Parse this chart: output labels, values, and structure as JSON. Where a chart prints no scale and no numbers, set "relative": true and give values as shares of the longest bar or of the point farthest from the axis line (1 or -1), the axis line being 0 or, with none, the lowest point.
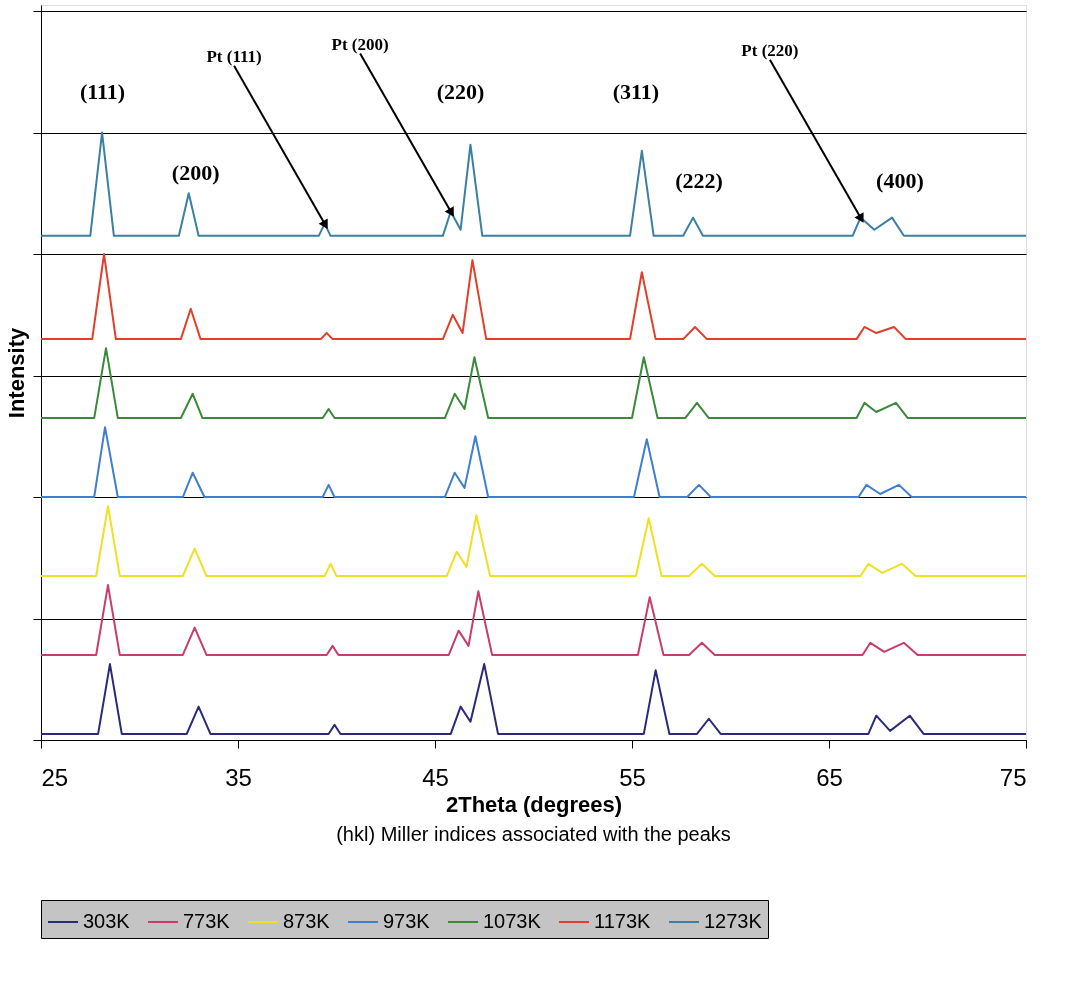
{
  "chart_data": {
    "type": "line",
    "relative": true,
    "xlabel": "2Theta (degrees)",
    "ylabel": "Intensity",
    "xlim": [
      25,
      75
    ],
    "xticks": [
      25,
      35,
      45,
      55,
      65,
      75
    ],
    "grid": "y",
    "legend": "bottom",
    "line_style": "solid",
    "marker": "none",
    "series": [
      {
        "name": "303K",
        "color": "#2b2a7a",
        "x": [
          25,
          27.9,
          28.5,
          29.1,
          32.4,
          33.0,
          33.6,
          39.6,
          39.9,
          40.2,
          45.8,
          46.3,
          46.8,
          47.5,
          48.2,
          55.6,
          56.2,
          56.9,
          58.3,
          58.9,
          59.5,
          67.0,
          67.4,
          68.1,
          69.1,
          69.8,
          75
        ],
        "values": [
          0.01,
          0.01,
          0.125,
          0.01,
          0.01,
          0.055,
          0.01,
          0.01,
          0.025,
          0.01,
          0.01,
          0.055,
          0.03,
          0.125,
          0.01,
          0.01,
          0.115,
          0.01,
          0.01,
          0.035,
          0.01,
          0.01,
          0.04,
          0.015,
          0.04,
          0.01,
          0.01
        ]
      },
      {
        "name": "773K",
        "color": "#c83c6e",
        "x": [
          25,
          27.8,
          28.4,
          29.0,
          32.2,
          32.8,
          33.4,
          39.5,
          39.8,
          40.1,
          45.7,
          46.2,
          46.7,
          47.2,
          47.9,
          55.3,
          55.9,
          56.6,
          57.9,
          58.55,
          59.2,
          66.7,
          67.1,
          67.8,
          68.8,
          69.5,
          75
        ],
        "values": [
          0.14,
          0.14,
          0.255,
          0.14,
          0.14,
          0.185,
          0.14,
          0.14,
          0.155,
          0.14,
          0.14,
          0.18,
          0.155,
          0.245,
          0.14,
          0.14,
          0.235,
          0.14,
          0.14,
          0.16,
          0.14,
          0.14,
          0.16,
          0.145,
          0.16,
          0.14,
          0.14
        ]
      },
      {
        "name": "873K",
        "color": "#f0e024",
        "x": [
          25,
          27.8,
          28.4,
          29.0,
          32.2,
          32.8,
          33.4,
          39.4,
          39.7,
          40.0,
          45.6,
          46.1,
          46.6,
          47.1,
          47.8,
          55.2,
          55.85,
          56.5,
          57.9,
          58.55,
          59.2,
          66.6,
          67.0,
          67.7,
          68.7,
          69.4,
          75
        ],
        "values": [
          0.27,
          0.27,
          0.385,
          0.27,
          0.27,
          0.315,
          0.27,
          0.27,
          0.29,
          0.27,
          0.27,
          0.31,
          0.285,
          0.37,
          0.27,
          0.27,
          0.365,
          0.27,
          0.27,
          0.29,
          0.27,
          0.27,
          0.29,
          0.275,
          0.29,
          0.27,
          0.27
        ]
      },
      {
        "name": "973K",
        "color": "#3f7fd0",
        "x": [
          25,
          27.7,
          28.25,
          28.9,
          32.2,
          32.7,
          33.3,
          39.3,
          39.6,
          39.9,
          45.5,
          46.0,
          46.5,
          47.05,
          47.7,
          55.1,
          55.75,
          56.4,
          57.8,
          58.4,
          59.0,
          66.5,
          66.9,
          67.6,
          68.55,
          69.2,
          75
        ],
        "values": [
          0.4,
          0.4,
          0.515,
          0.4,
          0.4,
          0.44,
          0.4,
          0.4,
          0.42,
          0.4,
          0.4,
          0.44,
          0.415,
          0.5,
          0.4,
          0.4,
          0.495,
          0.4,
          0.4,
          0.42,
          0.4,
          0.4,
          0.42,
          0.405,
          0.42,
          0.4,
          0.4
        ]
      },
      {
        "name": "1073K",
        "color": "#3a8a3a",
        "x": [
          25,
          27.7,
          28.3,
          28.9,
          32.1,
          32.7,
          33.2,
          39.3,
          39.6,
          39.9,
          45.5,
          46.0,
          46.5,
          47.0,
          47.7,
          55.0,
          55.6,
          56.3,
          57.7,
          58.3,
          58.9,
          66.4,
          66.8,
          67.4,
          68.4,
          69.0,
          75
        ],
        "values": [
          0.53,
          0.53,
          0.645,
          0.53,
          0.53,
          0.57,
          0.53,
          0.53,
          0.545,
          0.53,
          0.53,
          0.57,
          0.545,
          0.63,
          0.53,
          0.53,
          0.63,
          0.53,
          0.53,
          0.555,
          0.53,
          0.53,
          0.555,
          0.54,
          0.555,
          0.53,
          0.53
        ]
      },
      {
        "name": "1173K",
        "color": "#e0402a",
        "x": [
          25,
          27.6,
          28.2,
          28.8,
          32.1,
          32.6,
          33.1,
          39.2,
          39.5,
          39.8,
          45.4,
          45.9,
          46.4,
          46.9,
          47.6,
          54.9,
          55.5,
          56.2,
          57.6,
          58.2,
          58.8,
          66.4,
          66.8,
          67.4,
          68.3,
          68.9,
          75
        ],
        "values": [
          0.66,
          0.66,
          0.8,
          0.66,
          0.66,
          0.71,
          0.66,
          0.66,
          0.67,
          0.66,
          0.66,
          0.7,
          0.67,
          0.79,
          0.66,
          0.66,
          0.77,
          0.66,
          0.66,
          0.68,
          0.66,
          0.66,
          0.68,
          0.67,
          0.68,
          0.66,
          0.66
        ]
      },
      {
        "name": "1273K",
        "color": "#3a80a0",
        "x": [
          25,
          27.5,
          28.1,
          28.7,
          32.0,
          32.5,
          33.0,
          39.1,
          39.4,
          39.7,
          45.4,
          45.8,
          46.3,
          46.8,
          47.4,
          54.9,
          55.5,
          56.1,
          57.6,
          58.1,
          58.6,
          66.2,
          66.6,
          67.3,
          68.2,
          68.8,
          75
        ],
        "values": [
          0.83,
          0.83,
          1.0,
          0.83,
          0.83,
          0.9,
          0.83,
          0.83,
          0.85,
          0.83,
          0.83,
          0.87,
          0.84,
          0.98,
          0.83,
          0.83,
          0.97,
          0.83,
          0.83,
          0.86,
          0.83,
          0.83,
          0.86,
          0.84,
          0.86,
          0.83,
          0.83
        ]
      }
    ],
    "annotations": [
      "(111)",
      "(200)",
      {
        "text": "Pt (111)",
        "x": 39.4,
        "y": 0.85
      },
      {
        "text": "Pt (200)",
        "x": 45.8,
        "y": 0.87
      },
      "(220)",
      "(311)",
      "(222)",
      {
        "text": "Pt (220)",
        "x": 66.6,
        "y": 0.86
      },
      "(400)",
      "(hkl) Miller indices associated with the peaks"
    ]
  }
}
